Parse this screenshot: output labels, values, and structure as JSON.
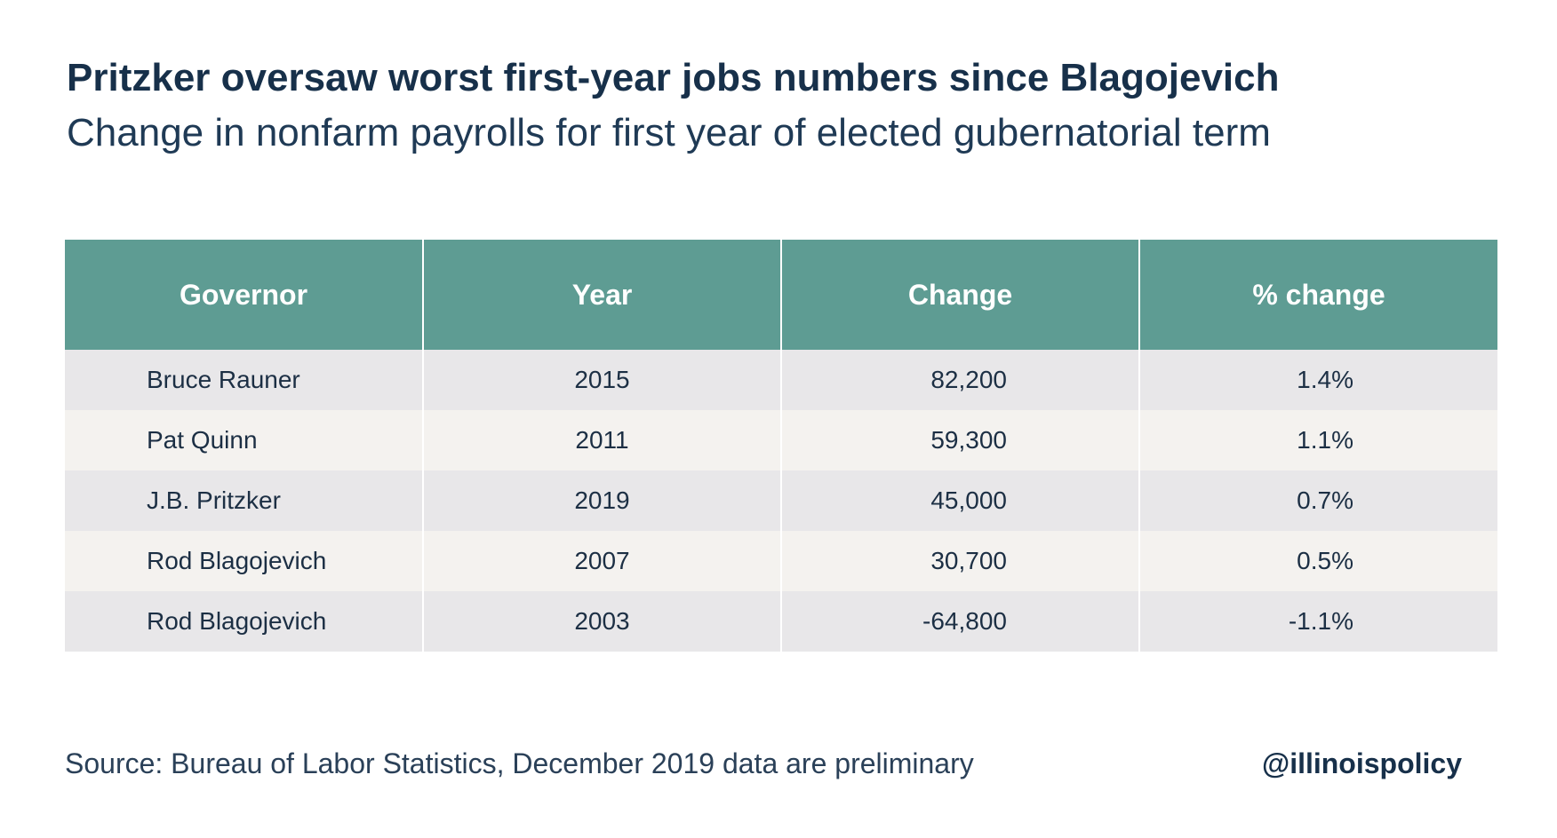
{
  "title": "Pritzker oversaw worst first-year jobs numbers since Blagojevich",
  "subtitle": "Change in nonfarm payrolls for first year of elected gubernatorial term",
  "source": "Source: Bureau of Labor Statistics, December 2019 data are preliminary",
  "handle": "@illinoispolicy",
  "colors": {
    "header_bg": "#5e9c93",
    "row_odd": "#e8e7e9",
    "row_even": "#f4f2ef",
    "title": "#17304a"
  },
  "chart_data": {
    "type": "table",
    "columns": [
      "Governor",
      "Year",
      "Change",
      "% change"
    ],
    "rows": [
      [
        "Bruce Rauner",
        "2015",
        "82,200",
        "1.4%"
      ],
      [
        "Pat Quinn",
        "2011",
        "59,300",
        "1.1%"
      ],
      [
        "J.B. Pritzker",
        "2019",
        "45,000",
        "0.7%"
      ],
      [
        "Rod Blagojevich",
        "2007",
        "30,700",
        "0.5%"
      ],
      [
        "Rod Blagojevich",
        "2003",
        "-64,800",
        "-1.1%"
      ]
    ]
  }
}
